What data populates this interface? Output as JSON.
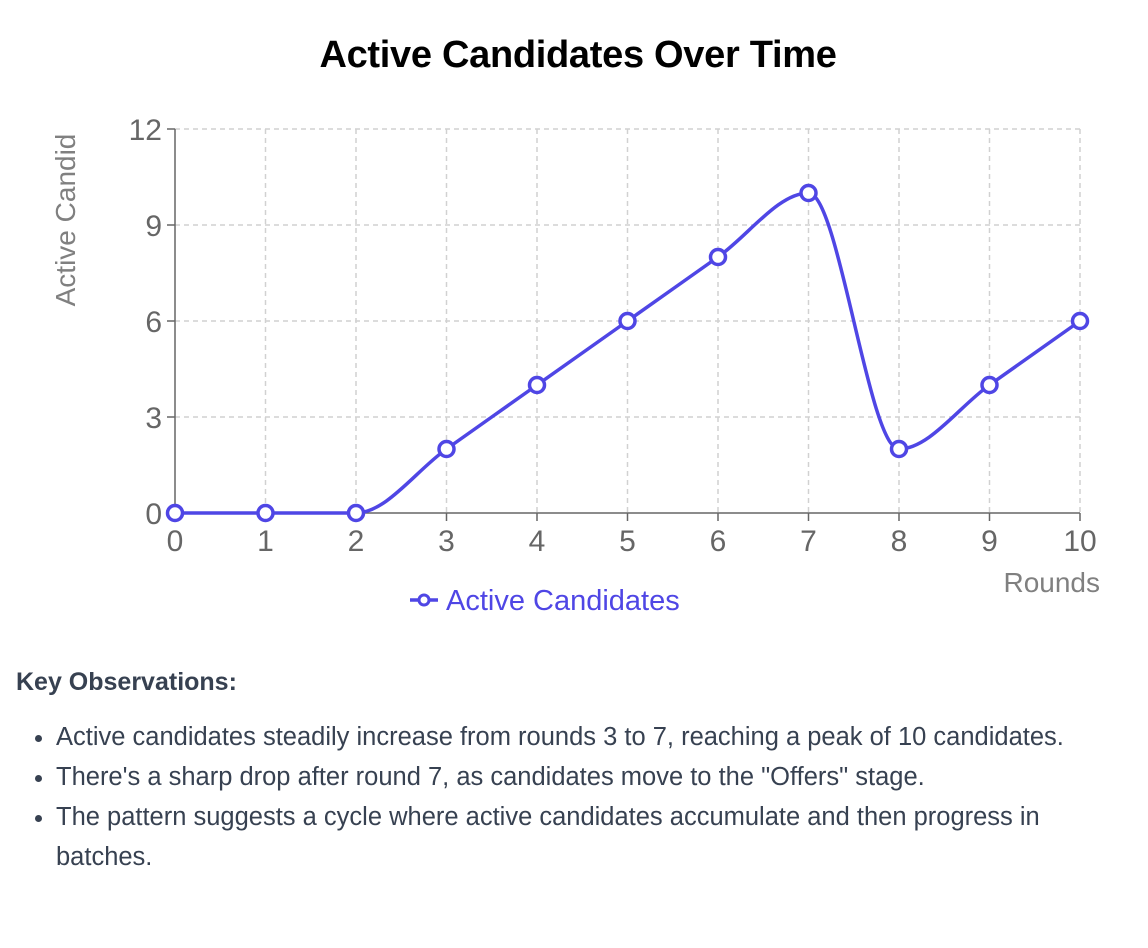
{
  "chart_data": {
    "type": "line",
    "title": "Active Candidates Over Time",
    "xlabel": "Rounds",
    "ylabel": "Active Candid",
    "x": [
      0,
      1,
      2,
      3,
      4,
      5,
      6,
      7,
      8,
      9,
      10
    ],
    "xlim": [
      0,
      10
    ],
    "ylim": [
      0,
      12
    ],
    "yticks": [
      0,
      3,
      6,
      9,
      12
    ],
    "xticks": [
      0,
      1,
      2,
      3,
      4,
      5,
      6,
      7,
      8,
      9,
      10
    ],
    "grid": true,
    "grid_style": "dashed",
    "legend_position": "bottom-center",
    "series": [
      {
        "name": "Active Candidates",
        "color": "#4f46e5",
        "smooth": true,
        "values": [
          0,
          0,
          0,
          2,
          4,
          6,
          8,
          10,
          2,
          4,
          6
        ]
      }
    ]
  },
  "notes": {
    "heading": "Key Observations:",
    "items": [
      "Active candidates steadily increase from rounds 3 to 7, reaching a peak of 10 candidates.",
      "There's a sharp drop after round 7, as candidates move to the \"Offers\" stage.",
      "The pattern suggests a cycle where active candidates accumulate and then progress in batches."
    ]
  },
  "colors": {
    "series": "#4f46e5",
    "grid": "#d1d1d1",
    "axis": "#666666",
    "axis_title": "#808080",
    "notes_text": "#374151"
  }
}
